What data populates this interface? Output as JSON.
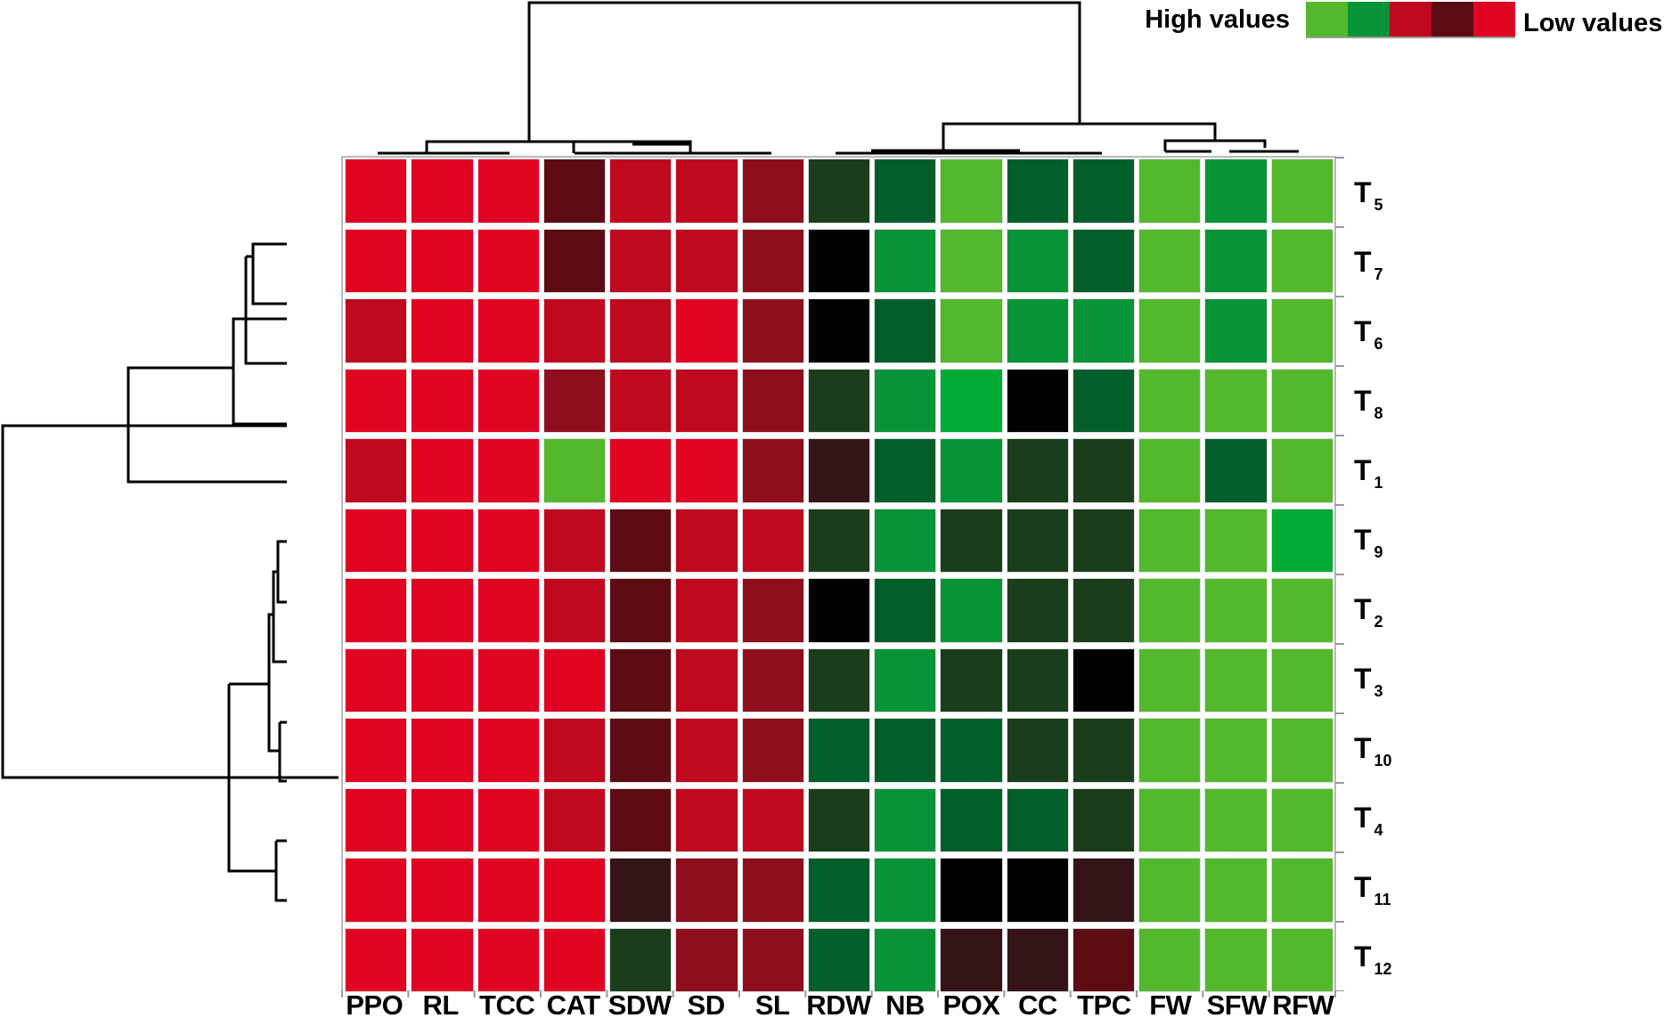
{
  "chart_data": {
    "type": "heatmap",
    "title": "",
    "legend": {
      "high_label": "High values",
      "low_label": "Low values",
      "scale_colors": [
        "#53B82C",
        "#079436",
        "#C0081F",
        "#5C0C12",
        "#E00322"
      ],
      "position": "top-right"
    },
    "columns": [
      "PPO",
      "RL",
      "TCC",
      "CAT",
      "SDW",
      "SD",
      "SL",
      "RDW",
      "NB",
      "POX",
      "CC",
      "TPC",
      "FW",
      "SFW",
      "RFW"
    ],
    "rows": [
      {
        "label": "T",
        "sub": "5"
      },
      {
        "label": "T",
        "sub": "7"
      },
      {
        "label": "T",
        "sub": "6"
      },
      {
        "label": "T",
        "sub": "8"
      },
      {
        "label": "T",
        "sub": "1"
      },
      {
        "label": "T",
        "sub": "9"
      },
      {
        "label": "T",
        "sub": "2"
      },
      {
        "label": "T",
        "sub": "3"
      },
      {
        "label": "T",
        "sub": "10"
      },
      {
        "label": "T",
        "sub": "4"
      },
      {
        "label": "T",
        "sub": "11"
      },
      {
        "label": "T",
        "sub": "12"
      }
    ],
    "color_key": {
      "R1": "#E00322",
      "R2": "#C0081F",
      "R3": "#8F0E1E",
      "R4": "#5C0C12",
      "R5": "#351417",
      "K": "#000000",
      "G5": "#1A3E1B",
      "G4": "#025E2A",
      "G3": "#079436",
      "G2": "#00AC35",
      "G1": "#53B82C"
    },
    "cells": [
      [
        "R1",
        "R1",
        "R1",
        "R4",
        "R2",
        "R2",
        "R3",
        "G5",
        "G4",
        "G1",
        "G4",
        "G4",
        "G1",
        "G3",
        "G1"
      ],
      [
        "R1",
        "R1",
        "R1",
        "R4",
        "R2",
        "R2",
        "R3",
        "K",
        "G3",
        "G1",
        "G3",
        "G4",
        "G1",
        "G3",
        "G1"
      ],
      [
        "R2",
        "R1",
        "R1",
        "R2",
        "R2",
        "R1",
        "R3",
        "K",
        "G4",
        "G1",
        "G3",
        "G3",
        "G1",
        "G3",
        "G1"
      ],
      [
        "R1",
        "R1",
        "R1",
        "R3",
        "R2",
        "R2",
        "R3",
        "G5",
        "G3",
        "G2",
        "K",
        "G4",
        "G1",
        "G1",
        "G1"
      ],
      [
        "R2",
        "R1",
        "R1",
        "G1",
        "R1",
        "R1",
        "R3",
        "R5",
        "G4",
        "G3",
        "G5",
        "G5",
        "G1",
        "G4",
        "G1"
      ],
      [
        "R1",
        "R1",
        "R1",
        "R2",
        "R4",
        "R2",
        "R2",
        "G5",
        "G3",
        "G5",
        "G5",
        "G5",
        "G1",
        "G1",
        "G2"
      ],
      [
        "R1",
        "R1",
        "R1",
        "R2",
        "R4",
        "R2",
        "R3",
        "K",
        "G4",
        "G3",
        "G5",
        "G5",
        "G1",
        "G1",
        "G1"
      ],
      [
        "R1",
        "R1",
        "R1",
        "R1",
        "R4",
        "R2",
        "R3",
        "G5",
        "G3",
        "G5",
        "G5",
        "K",
        "G1",
        "G1",
        "G1"
      ],
      [
        "R1",
        "R1",
        "R1",
        "R2",
        "R4",
        "R2",
        "R3",
        "G4",
        "G4",
        "G4",
        "G5",
        "G5",
        "G1",
        "G1",
        "G1"
      ],
      [
        "R1",
        "R1",
        "R1",
        "R2",
        "R4",
        "R2",
        "R2",
        "G5",
        "G3",
        "G4",
        "G4",
        "G5",
        "G1",
        "G1",
        "G1"
      ],
      [
        "R1",
        "R1",
        "R1",
        "R1",
        "R5",
        "R3",
        "R3",
        "G4",
        "G3",
        "K",
        "K",
        "R5",
        "G1",
        "G1",
        "G1"
      ],
      [
        "R1",
        "R1",
        "R1",
        "R1",
        "G5",
        "R3",
        "R3",
        "G4",
        "G3",
        "R5",
        "R5",
        "R4",
        "G1",
        "G1",
        "G1"
      ]
    ],
    "column_dendrogram": "two main clusters: {PPO,RL,TCC,CAT,SDW,SD,SL} and {RDW,NB,POX,CC,TPC,FW,SFW,RFW}",
    "row_dendrogram": "two main clusters: {T5,T7,T6,T8,T1} and {T9,T2,T3,T10,T4,T11,T12}",
    "grid": false
  }
}
